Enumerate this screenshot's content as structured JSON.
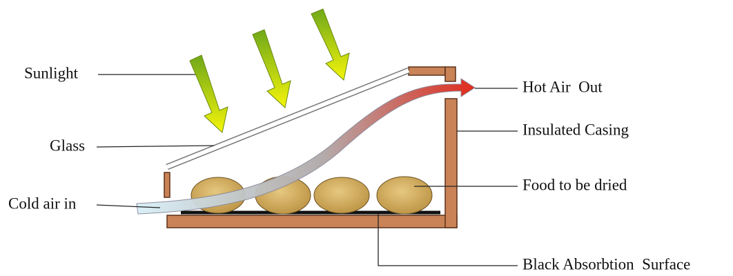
{
  "labels": {
    "sunlight": "Sunlight",
    "glass": "Glass",
    "cold_air": "Cold air in",
    "hot_air": "Hot Air  Out",
    "casing": "Insulated Casing",
    "food": "Food to be dried",
    "surface": "Black Absorbtion  Surface"
  }
}
